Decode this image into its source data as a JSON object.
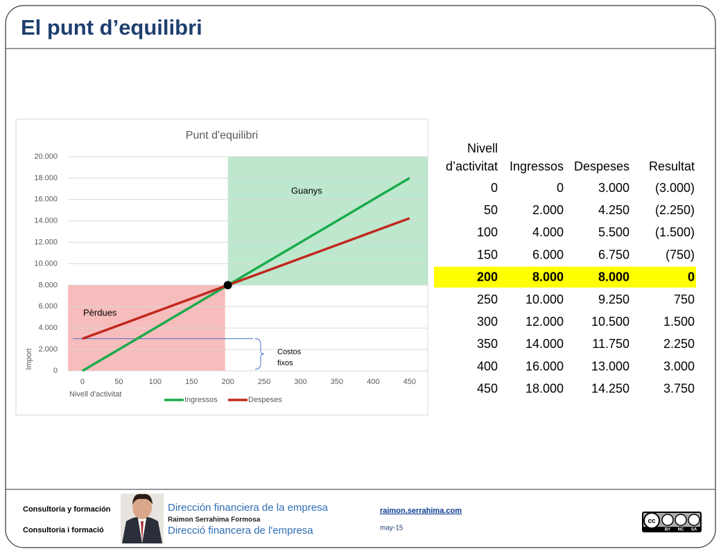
{
  "header": {
    "title": "El punt d’equilibri"
  },
  "chart_data": {
    "type": "line",
    "title": "Punt d'equilibri",
    "x_label": "Nivell d'activitat",
    "y_label": "Import",
    "x": [
      0,
      50,
      100,
      150,
      200,
      250,
      300,
      350,
      400,
      450
    ],
    "series": [
      {
        "name": "Ingressos",
        "color": "#1aab4b",
        "values": [
          0,
          2000,
          4000,
          6000,
          8000,
          10000,
          12000,
          14000,
          16000,
          18000
        ]
      },
      {
        "name": "Despeses",
        "color": "#c0281c",
        "values": [
          3000,
          4250,
          5500,
          6750,
          8000,
          9250,
          10500,
          11750,
          13000,
          14250
        ]
      }
    ],
    "xlim": [
      -20,
      475
    ],
    "xticks": [
      0,
      50,
      100,
      150,
      200,
      250,
      300,
      350,
      400,
      450
    ],
    "ylim": [
      0,
      20000
    ],
    "yticks": [
      0,
      {
        "value": 2000,
        "label": "2.000"
      },
      {
        "value": 4000,
        "label": "4.000"
      },
      {
        "value": 6000,
        "label": "6.000"
      },
      {
        "value": 8000,
        "label": "8.000"
      },
      {
        "value": 10000,
        "label": "10.000"
      },
      {
        "value": 12000,
        "label": "12.000"
      },
      {
        "value": 14000,
        "label": "14.000"
      },
      {
        "value": 16000,
        "label": "16.000"
      },
      {
        "value": 18000,
        "label": "18.000"
      },
      {
        "value": 20000,
        "label": "20.000"
      }
    ],
    "grid": true,
    "legend": "bottom",
    "break_even": {
      "x": 200,
      "y": 8000
    },
    "regions": [
      {
        "label": "Pèrdues",
        "color": "#f4a6a6"
      },
      {
        "label": "Guanys",
        "color": "#a8e0bc"
      }
    ],
    "fixed_costs": {
      "value": 3000,
      "label": [
        "Costos",
        "fixos"
      ]
    }
  },
  "table": {
    "header": [
      "Nivell",
      "d’activitat",
      "Ingressos",
      "Despeses",
      "Resultat"
    ],
    "highlight_row": 4,
    "rows": [
      [
        "0",
        "0",
        "3.000",
        "(3.000)"
      ],
      [
        "50",
        "2.000",
        "4.250",
        "(2.250)"
      ],
      [
        "100",
        "4.000",
        "5.500",
        "(1.500)"
      ],
      [
        "150",
        "6.000",
        "6.750",
        "(750)"
      ],
      [
        "200",
        "8.000",
        "8.000",
        "0"
      ],
      [
        "250",
        "10.000",
        "9.250",
        "750"
      ],
      [
        "300",
        "12.000",
        "10.500",
        "1.500"
      ],
      [
        "350",
        "14.000",
        "11.750",
        "2.250"
      ],
      [
        "400",
        "16.000",
        "13.000",
        "3.000"
      ],
      [
        "450",
        "18.000",
        "14.250",
        "3.750"
      ]
    ]
  },
  "footer": {
    "left": [
      "Consultoria y formación",
      "Consultoria i formació"
    ],
    "brand": [
      "Dirección financiera de la empresa",
      "Raimon Serrahima Formosa",
      "Direcció financera de l'empresa"
    ],
    "link": "raimon.serrahima.com",
    "date": "may-15",
    "license": [
      "cc",
      "BY",
      "NC",
      "SA"
    ]
  }
}
